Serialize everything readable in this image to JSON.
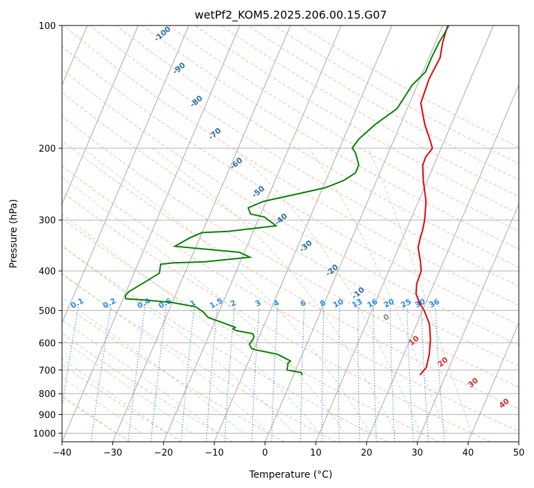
{
  "chart_data": {
    "type": "line",
    "title": "wetPf2_KOM5.2025.206.00.15.G07",
    "xlabel": "Temperature (°C)",
    "ylabel": "Pressure (hPa)",
    "xlim": [
      -40,
      50
    ],
    "ylim": [
      1050,
      100
    ],
    "y_scale": "log",
    "x_ticks": [
      -40,
      -30,
      -20,
      -10,
      0,
      10,
      20,
      30,
      40,
      50
    ],
    "y_ticks": [
      100,
      200,
      300,
      400,
      500,
      600,
      700,
      800,
      900,
      1000
    ],
    "grid": true,
    "series": [
      {
        "color": "#e00000",
        "points": [
          [
            24.9,
            720
          ],
          [
            25.5,
            690
          ],
          [
            25.0,
            640
          ],
          [
            24.0,
            590
          ],
          [
            22.5,
            540
          ],
          [
            20.3,
            500
          ],
          [
            18.8,
            480
          ],
          [
            17.3,
            455
          ],
          [
            16.6,
            430
          ],
          [
            16.4,
            400
          ],
          [
            15.5,
            380
          ],
          [
            13.8,
            350
          ],
          [
            13.4,
            330
          ],
          [
            13.3,
            320
          ],
          [
            12.8,
            300
          ],
          [
            11.5,
            270
          ],
          [
            9.2,
            240
          ],
          [
            7.8,
            220
          ],
          [
            7.7,
            210
          ],
          [
            8.3,
            200
          ],
          [
            7.0,
            190
          ],
          [
            4.8,
            175
          ],
          [
            2.2,
            155
          ],
          [
            1.8,
            135
          ],
          [
            2.2,
            120
          ],
          [
            1.4,
            110
          ],
          [
            1.0,
            100
          ]
        ]
      },
      {
        "color": "#008000",
        "points": [
          [
            1.7,
            720
          ],
          [
            1.3,
            710
          ],
          [
            -1.7,
            700
          ],
          [
            -1.9,
            685
          ],
          [
            -2.1,
            675
          ],
          [
            -1.8,
            665
          ],
          [
            -2.4,
            660
          ],
          [
            -5.0,
            640
          ],
          [
            -9.5,
            625
          ],
          [
            -10.5,
            620
          ],
          [
            -11.3,
            605
          ],
          [
            -11.0,
            590
          ],
          [
            -11.0,
            580
          ],
          [
            -11.5,
            570
          ],
          [
            -15.1,
            560
          ],
          [
            -15.8,
            555
          ],
          [
            -15.5,
            550
          ],
          [
            -18.5,
            535
          ],
          [
            -21.7,
            520
          ],
          [
            -23.0,
            505
          ],
          [
            -25.0,
            490
          ],
          [
            -30.0,
            478
          ],
          [
            -35.0,
            472
          ],
          [
            -39.5,
            468
          ],
          [
            -39.8,
            460
          ],
          [
            -39.5,
            450
          ],
          [
            -37.0,
            425
          ],
          [
            -35.0,
            405
          ],
          [
            -35.5,
            385
          ],
          [
            -33.0,
            382
          ],
          [
            -27.0,
            380
          ],
          [
            -18.5,
            370
          ],
          [
            -21.0,
            360
          ],
          [
            -34.2,
            348
          ],
          [
            -32.0,
            332
          ],
          [
            -30.0,
            322
          ],
          [
            -25.0,
            320
          ],
          [
            -16.0,
            310
          ],
          [
            -19.0,
            295
          ],
          [
            -22.0,
            290
          ],
          [
            -23.0,
            280
          ],
          [
            -20.5,
            270
          ],
          [
            -15.0,
            260
          ],
          [
            -9.5,
            250
          ],
          [
            -6.5,
            240
          ],
          [
            -4.8,
            230
          ],
          [
            -4.8,
            220
          ],
          [
            -6.5,
            205
          ],
          [
            -7.5,
            200
          ],
          [
            -7.0,
            190
          ],
          [
            -5.0,
            175
          ],
          [
            -2.0,
            160
          ],
          [
            -1.0,
            140
          ],
          [
            0.5,
            130
          ],
          [
            0.5,
            120
          ],
          [
            0.7,
            110
          ],
          [
            1.0,
            105
          ],
          [
            1.2,
            100
          ]
        ]
      }
    ],
    "isotherm_labels": [],
    "dry_adiabat_labels": [
      "-100",
      "-90",
      "-80",
      "-70",
      "-60",
      "-50",
      "-40",
      "-30",
      "-20",
      "-10",
      "0",
      "10",
      "20",
      "30",
      "40"
    ],
    "mixing_ratio_labels": [
      "0.1",
      "0.2",
      "0.4",
      "0.6",
      "1",
      "1.5",
      "2",
      "3",
      "4",
      "6",
      "8",
      "10",
      "13",
      "16",
      "20",
      "25",
      "30",
      "36"
    ]
  }
}
